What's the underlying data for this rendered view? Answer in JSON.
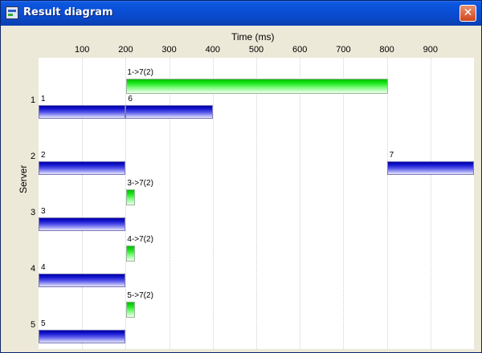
{
  "window": {
    "title": "Result diagram",
    "close_label": "✕"
  },
  "chart_data": {
    "type": "gantt",
    "xlabel": "Time (ms)",
    "ylabel": "Server",
    "xlim": [
      0,
      1000
    ],
    "x_ticks": [
      100,
      200,
      300,
      400,
      500,
      600,
      700,
      800,
      900
    ],
    "servers": [
      "1",
      "2",
      "3",
      "4",
      "5"
    ],
    "tasks": [
      {
        "server": "1",
        "label": "1",
        "start": 0,
        "end": 200
      },
      {
        "server": "1",
        "label": "6",
        "start": 200,
        "end": 400
      },
      {
        "server": "2",
        "label": "2",
        "start": 0,
        "end": 200
      },
      {
        "server": "2",
        "label": "7",
        "start": 800,
        "end": 1000
      },
      {
        "server": "3",
        "label": "3",
        "start": 0,
        "end": 200
      },
      {
        "server": "4",
        "label": "4",
        "start": 0,
        "end": 200
      },
      {
        "server": "5",
        "label": "5",
        "start": 0,
        "end": 200
      }
    ],
    "transfers": [
      {
        "server": "1",
        "label": "1->7(2)",
        "start": 200,
        "end": 800
      },
      {
        "server": "3",
        "label": "3->7(2)",
        "start": 200,
        "end": 220
      },
      {
        "server": "4",
        "label": "4->7(2)",
        "start": 200,
        "end": 220
      },
      {
        "server": "5",
        "label": "5->7(2)",
        "start": 200,
        "end": 220
      }
    ],
    "colors": {
      "task": "#1010C8",
      "transfer": "#20E820"
    }
  }
}
